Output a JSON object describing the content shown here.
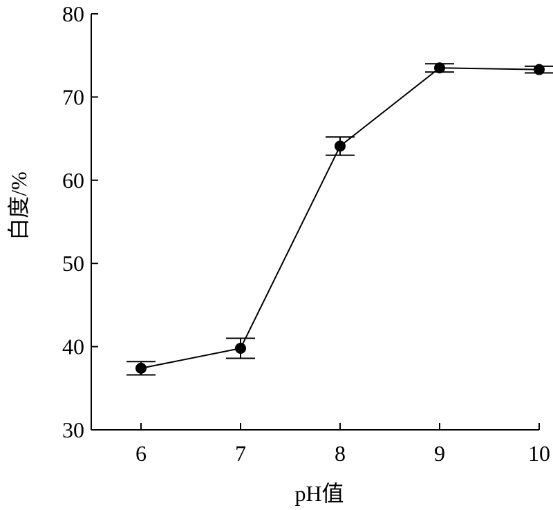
{
  "chart_data": {
    "type": "line",
    "title": "",
    "xlabel": "pH值",
    "ylabel": "白度/%",
    "x": [
      6,
      7,
      8,
      9,
      10
    ],
    "series": [
      {
        "values": [
          37.4,
          39.8,
          64.1,
          73.5,
          73.3
        ],
        "errors": [
          0.8,
          1.2,
          1.1,
          0.5,
          0.4
        ]
      }
    ],
    "xlim": [
      5.5,
      10
    ],
    "ylim": [
      30,
      80
    ],
    "xticks": [
      "6",
      "7",
      "8",
      "9",
      "10"
    ],
    "yticks": [
      "30",
      "40",
      "50",
      "60",
      "70",
      "80"
    ],
    "grid": false,
    "legend": "none",
    "marker_color": "#000000",
    "line_color": "#000000"
  }
}
